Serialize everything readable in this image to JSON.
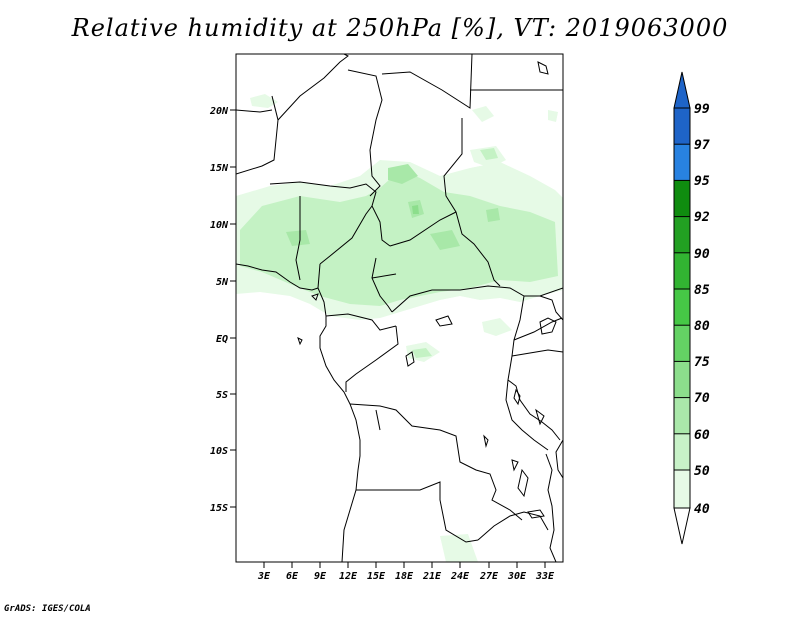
{
  "title": "Relative humidity at 250hPa [%], VT: 2019063000",
  "credit": "GrADS: IGES/COLA",
  "map": {
    "latitude_labels": [
      "20N",
      "15N",
      "10N",
      "5N",
      "EQ",
      "5S",
      "10S",
      "15S"
    ],
    "longitude_labels": [
      "3E",
      "6E",
      "9E",
      "12E",
      "15E",
      "18E",
      "21E",
      "24E",
      "27E",
      "30E",
      "33E"
    ],
    "colors": {
      "rh_50_60": "#e6fae6",
      "rh_60_70": "#c4f2c4",
      "rh_70_75": "#a8e8a8",
      "rh_75_80": "#8cde8c",
      "coastline": "#000000"
    }
  },
  "colorbar": {
    "labels": [
      "99",
      "97",
      "95",
      "92",
      "90",
      "85",
      "80",
      "75",
      "70",
      "60",
      "50",
      "40"
    ],
    "colors": [
      "#1e64c8",
      "#2882e1",
      "#3ca0f0",
      "#0f8c0f",
      "#22a022",
      "#32b432",
      "#46c846",
      "#64d264",
      "#8cde8c",
      "#aae8aa",
      "#c8f2c8",
      "#e6fae6"
    ]
  }
}
